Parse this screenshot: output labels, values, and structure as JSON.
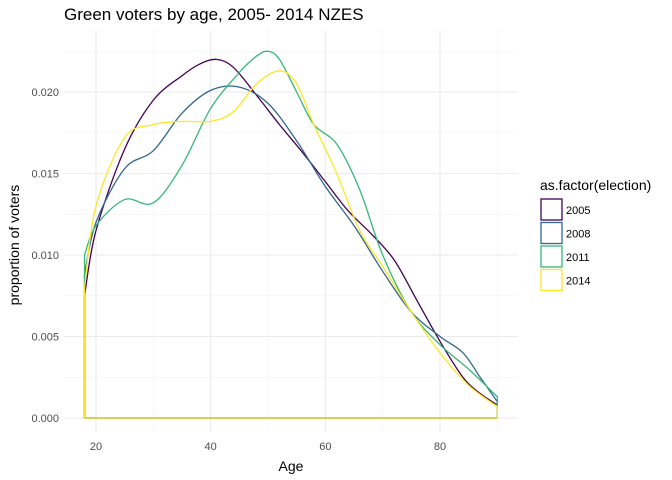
{
  "chart_data": {
    "type": "line",
    "title": "Green voters by age, 2005- 2014 NZES",
    "xlabel": "Age",
    "ylabel": "proportion of voters",
    "xlim": [
      18,
      90
    ],
    "ylim": [
      0,
      0.022
    ],
    "x_ticks": [
      20,
      40,
      60,
      80
    ],
    "x_tick_labels": [
      "20",
      "40",
      "60",
      "80"
    ],
    "y_ticks": [
      0,
      0.005,
      0.01,
      0.015,
      0.02
    ],
    "y_tick_labels": [
      "0.000",
      "0.005",
      "0.010",
      "0.015",
      "0.020"
    ],
    "grid": true,
    "legend": {
      "title": "as.factor(election)",
      "position": "right"
    },
    "series": [
      {
        "name": "2005",
        "color": "#440154",
        "x": [
          18,
          20,
          25,
          30,
          35,
          38,
          41,
          44,
          48,
          52,
          56,
          60,
          64,
          68,
          72,
          76,
          80,
          84,
          87,
          90
        ],
        "y": [
          0.0075,
          0.0115,
          0.0165,
          0.0195,
          0.021,
          0.0217,
          0.022,
          0.0215,
          0.0198,
          0.018,
          0.0163,
          0.0145,
          0.0127,
          0.0113,
          0.0097,
          0.0072,
          0.0047,
          0.0025,
          0.0015,
          0.0008
        ]
      },
      {
        "name": "2008",
        "color": "#31688E",
        "x": [
          18,
          20,
          25,
          30,
          35,
          40,
          45,
          50,
          55,
          60,
          65,
          70,
          75,
          80,
          84,
          87,
          90
        ],
        "y": [
          0.0088,
          0.012,
          0.0153,
          0.0164,
          0.0187,
          0.0201,
          0.0203,
          0.0193,
          0.017,
          0.0142,
          0.0118,
          0.009,
          0.0065,
          0.005,
          0.004,
          0.0025,
          0.001
        ]
      },
      {
        "name": "2011",
        "color": "#35B779",
        "x": [
          18,
          20,
          25,
          30,
          35,
          40,
          45,
          48,
          50,
          52,
          55,
          58,
          62,
          66,
          70,
          75,
          80,
          85,
          90
        ],
        "y": [
          0.01,
          0.0118,
          0.0134,
          0.0132,
          0.0155,
          0.019,
          0.0212,
          0.0222,
          0.0225,
          0.022,
          0.02,
          0.018,
          0.0168,
          0.014,
          0.01,
          0.0065,
          0.0045,
          0.003,
          0.0013
        ]
      },
      {
        "name": "2014",
        "color": "#FDE725",
        "x": [
          18,
          20,
          25,
          30,
          35,
          40,
          44,
          48,
          52,
          55,
          58,
          62,
          66,
          70,
          75,
          80,
          85,
          90
        ],
        "y": [
          0.008,
          0.013,
          0.0172,
          0.018,
          0.0182,
          0.0182,
          0.0188,
          0.0205,
          0.0213,
          0.0205,
          0.018,
          0.015,
          0.0115,
          0.0093,
          0.0065,
          0.004,
          0.002,
          0.0007
        ]
      }
    ]
  }
}
